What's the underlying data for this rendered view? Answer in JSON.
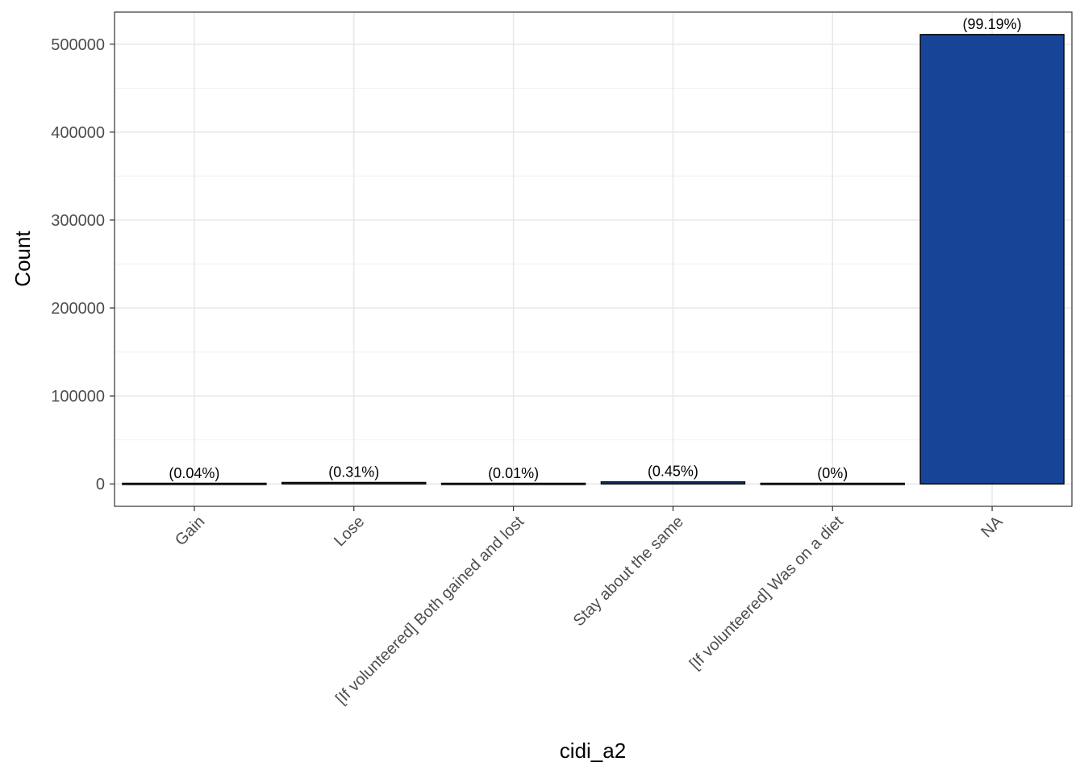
{
  "chart_data": {
    "type": "bar",
    "title": "",
    "xlabel": "cidi_a2",
    "ylabel": "Count",
    "categories": [
      "Gain",
      "Lose",
      "[If volunteered] Both gained and lost",
      "Stay about the same",
      "[If volunteered] Was on a diet",
      "NA"
    ],
    "values": [
      220,
      1600,
      50,
      2300,
      10,
      511000
    ],
    "data_labels": [
      "(0.04%)",
      "(0.31%)",
      "(0.01%)",
      "(0.45%)",
      "(0%)",
      "(99.19%)"
    ],
    "ylim": [
      -25500,
      536500
    ],
    "yticks": [
      0,
      100000,
      200000,
      300000,
      400000,
      500000
    ],
    "ytick_labels": [
      "0",
      "100000",
      "200000",
      "300000",
      "400000",
      "500000"
    ],
    "grid": true,
    "bar_fill": "#174496",
    "bar_outline": "#000000"
  }
}
